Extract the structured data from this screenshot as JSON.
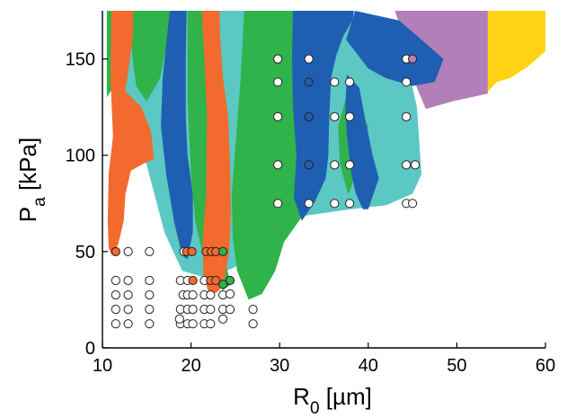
{
  "chart_data": {
    "type": "scatter",
    "title": "",
    "xlabel": "R",
    "xlabel_sub": "0",
    "xlabel_unit": " [µm]",
    "ylabel": "P",
    "ylabel_sub": "a",
    "ylabel_unit": " [kPa]",
    "xlim": [
      10,
      60
    ],
    "ylim": [
      0,
      175
    ],
    "xticks": [
      10,
      20,
      30,
      40,
      50,
      60
    ],
    "yticks": [
      0,
      50,
      100,
      150
    ],
    "grid": false,
    "colors": {
      "orange": "#f26a2e",
      "green": "#2fb34a",
      "blue": "#1f5fb2",
      "cyan": "#5cc8c3",
      "purple": "#b27fb8",
      "yellow": "#ffd314",
      "white": "#ffffff",
      "edge": "#222222"
    },
    "regions": [
      {
        "color": "cyan",
        "points": [
          [
            10.6,
            175
          ],
          [
            36,
            175
          ],
          [
            39.5,
            164
          ],
          [
            44,
            155
          ],
          [
            45.5,
            125
          ],
          [
            46,
            90
          ],
          [
            45,
            80
          ],
          [
            42,
            74
          ],
          [
            38,
            72
          ],
          [
            32,
            68
          ],
          [
            27,
            55
          ],
          [
            25,
            42
          ],
          [
            22,
            36
          ],
          [
            19,
            40
          ],
          [
            17,
            60
          ],
          [
            15,
            95
          ],
          [
            13,
            120
          ],
          [
            11,
            155
          ]
        ]
      },
      {
        "color": "purple",
        "points": [
          [
            43,
            175
          ],
          [
            53.5,
            175
          ],
          [
            53.5,
            132
          ],
          [
            49.5,
            128
          ],
          [
            46.5,
            124
          ],
          [
            45.5,
            135
          ],
          [
            44.5,
            155
          ]
        ]
      },
      {
        "color": "yellow",
        "points": [
          [
            53.5,
            175
          ],
          [
            60,
            175
          ],
          [
            60,
            154
          ],
          [
            58,
            146
          ],
          [
            56,
            140
          ],
          [
            54.5,
            138
          ],
          [
            53.5,
            133
          ]
        ]
      },
      {
        "color": "blue",
        "points": [
          [
            38.5,
            175
          ],
          [
            43.5,
            170
          ],
          [
            46.5,
            158
          ],
          [
            48.5,
            150
          ],
          [
            47.5,
            138
          ],
          [
            45,
            136
          ],
          [
            42,
            140
          ],
          [
            40,
            145
          ],
          [
            37.5,
            160
          ]
        ]
      },
      {
        "color": "green",
        "points": [
          [
            10.5,
            175
          ],
          [
            12.6,
            175
          ],
          [
            12.4,
            160
          ],
          [
            11.8,
            140
          ],
          [
            10.5,
            130
          ]
        ]
      },
      {
        "color": "green",
        "points": [
          [
            13.5,
            175
          ],
          [
            17.6,
            175
          ],
          [
            17.3,
            158
          ],
          [
            16.5,
            140
          ],
          [
            15,
            128
          ],
          [
            13.8,
            136
          ],
          [
            13.3,
            155
          ]
        ]
      },
      {
        "color": "green",
        "points": [
          [
            19.6,
            175
          ],
          [
            22.6,
            175
          ],
          [
            22.2,
            150
          ],
          [
            22.1,
            120
          ],
          [
            22.4,
            100
          ],
          [
            22.6,
            70
          ],
          [
            23.2,
            52
          ],
          [
            24,
            42
          ],
          [
            24.5,
            33
          ],
          [
            23.6,
            30
          ],
          [
            22.6,
            35
          ],
          [
            21.5,
            45
          ],
          [
            20.5,
            65
          ],
          [
            20,
            90
          ],
          [
            19.6,
            130
          ]
        ]
      },
      {
        "color": "green",
        "points": [
          [
            26,
            175
          ],
          [
            31.5,
            175
          ],
          [
            33,
            165
          ],
          [
            35.5,
            150
          ],
          [
            35.6,
            120
          ],
          [
            35.4,
            95
          ],
          [
            34.2,
            80
          ],
          [
            32.5,
            68
          ],
          [
            30.5,
            55
          ],
          [
            29.5,
            40
          ],
          [
            28,
            28
          ],
          [
            26.5,
            25
          ],
          [
            25.2,
            40
          ],
          [
            24.7,
            58
          ],
          [
            24.6,
            80
          ],
          [
            25.1,
            110
          ],
          [
            25.6,
            140
          ]
        ]
      },
      {
        "color": "green",
        "points": [
          [
            37.5,
            130
          ],
          [
            39.2,
            122
          ],
          [
            40,
            115
          ],
          [
            39.6,
            100
          ],
          [
            38.5,
            90
          ],
          [
            38,
            82
          ],
          [
            37.7,
            80
          ],
          [
            36.8,
            96
          ],
          [
            36.6,
            115
          ]
        ]
      },
      {
        "color": "blue",
        "points": [
          [
            17.6,
            175
          ],
          [
            19.5,
            175
          ],
          [
            19.4,
            150
          ],
          [
            19.4,
            120
          ],
          [
            19.6,
            100
          ],
          [
            20.2,
            80
          ],
          [
            20.2,
            60
          ],
          [
            19.6,
            46
          ],
          [
            19,
            48
          ],
          [
            18.1,
            65
          ],
          [
            17.2,
            90
          ],
          [
            16.6,
            115
          ],
          [
            16.8,
            140
          ]
        ]
      },
      {
        "color": "blue",
        "points": [
          [
            31.5,
            175
          ],
          [
            38.4,
            175
          ],
          [
            38.2,
            170
          ],
          [
            37.2,
            162
          ],
          [
            36.4,
            152
          ],
          [
            35.8,
            140
          ],
          [
            35.6,
            120
          ],
          [
            35.5,
            100
          ],
          [
            35.2,
            88
          ],
          [
            34,
            76
          ],
          [
            32.5,
            66
          ],
          [
            31.6,
            78
          ],
          [
            31.9,
            100
          ],
          [
            31.5,
            125
          ],
          [
            31.4,
            150
          ]
        ]
      },
      {
        "color": "blue",
        "points": [
          [
            37.6,
            142
          ],
          [
            39,
            135
          ],
          [
            39.6,
            120
          ],
          [
            40.5,
            100
          ],
          [
            41.2,
            88
          ],
          [
            40.6,
            80
          ],
          [
            40,
            72
          ],
          [
            39.4,
            72
          ],
          [
            38.6,
            80
          ],
          [
            38.1,
            90
          ],
          [
            37.6,
            110
          ],
          [
            37.4,
            125
          ]
        ]
      },
      {
        "color": "orange",
        "points": [
          [
            11,
            175
          ],
          [
            13.5,
            175
          ],
          [
            13.4,
            160
          ],
          [
            12.8,
            140
          ],
          [
            12.2,
            122
          ],
          [
            11.2,
            110
          ],
          [
            10.9,
            140
          ]
        ]
      },
      {
        "color": "orange",
        "points": [
          [
            21.2,
            175
          ],
          [
            23.2,
            175
          ],
          [
            23.3,
            160
          ],
          [
            23.6,
            140
          ],
          [
            24.2,
            120
          ],
          [
            24.4,
            95
          ],
          [
            24.5,
            70
          ],
          [
            24.3,
            50
          ],
          [
            23.8,
            36
          ],
          [
            23.2,
            30
          ],
          [
            22.6,
            28
          ],
          [
            21.9,
            30
          ],
          [
            21.4,
            38
          ],
          [
            21.3,
            55
          ],
          [
            21.7,
            80
          ],
          [
            21.8,
            120
          ],
          [
            21.5,
            150
          ]
        ]
      },
      {
        "color": "orange",
        "points": [
          [
            12.2,
            135
          ],
          [
            14.4,
            125
          ],
          [
            15.5,
            112
          ],
          [
            15.8,
            98
          ],
          [
            14.8,
            96
          ],
          [
            13.2,
            92
          ],
          [
            12.6,
            80
          ],
          [
            12.4,
            66
          ],
          [
            11.8,
            54
          ],
          [
            11.1,
            48
          ],
          [
            10.7,
            52
          ],
          [
            10.6,
            66
          ],
          [
            10.7,
            90
          ],
          [
            11.2,
            110
          ],
          [
            11.5,
            124
          ]
        ]
      }
    ],
    "series": [
      {
        "marker": "circle",
        "points": [
          {
            "x": 11.5,
            "y": 12.5,
            "c": "white"
          },
          {
            "x": 11.5,
            "y": 20,
            "c": "white"
          },
          {
            "x": 11.5,
            "y": 27.5,
            "c": "white"
          },
          {
            "x": 11.5,
            "y": 35,
            "c": "white"
          },
          {
            "x": 11.5,
            "y": 50,
            "c": "orange"
          },
          {
            "x": 12.9,
            "y": 12.5,
            "c": "white"
          },
          {
            "x": 12.9,
            "y": 20,
            "c": "white"
          },
          {
            "x": 12.9,
            "y": 27.5,
            "c": "white"
          },
          {
            "x": 12.9,
            "y": 35,
            "c": "white"
          },
          {
            "x": 12.9,
            "y": 50,
            "c": "white"
          },
          {
            "x": 15.3,
            "y": 12.5,
            "c": "white"
          },
          {
            "x": 15.3,
            "y": 20,
            "c": "white"
          },
          {
            "x": 15.3,
            "y": 27.5,
            "c": "white"
          },
          {
            "x": 15.3,
            "y": 35,
            "c": "white"
          },
          {
            "x": 15.3,
            "y": 50,
            "c": "white"
          },
          {
            "x": 18.8,
            "y": 12.5,
            "c": "white"
          },
          {
            "x": 18.7,
            "y": 15,
            "c": "white"
          },
          {
            "x": 18.8,
            "y": 20,
            "c": "white"
          },
          {
            "x": 19.1,
            "y": 27.5,
            "c": "white"
          },
          {
            "x": 18.8,
            "y": 35,
            "c": "white"
          },
          {
            "x": 19.2,
            "y": 50,
            "c": "white"
          },
          {
            "x": 19.6,
            "y": 12.5,
            "c": "white"
          },
          {
            "x": 19.6,
            "y": 20,
            "c": "white"
          },
          {
            "x": 19.6,
            "y": 27.5,
            "c": "white"
          },
          {
            "x": 19.6,
            "y": 35,
            "c": "white"
          },
          {
            "x": 19.5,
            "y": 50,
            "c": "orange"
          },
          {
            "x": 20.2,
            "y": 12.5,
            "c": "white"
          },
          {
            "x": 20.2,
            "y": 20,
            "c": "white"
          },
          {
            "x": 20.2,
            "y": 27.5,
            "c": "white"
          },
          {
            "x": 20.2,
            "y": 35,
            "c": "orange"
          },
          {
            "x": 20.1,
            "y": 50,
            "c": "orange"
          },
          {
            "x": 21.5,
            "y": 12.5,
            "c": "white"
          },
          {
            "x": 21.5,
            "y": 20,
            "c": "white"
          },
          {
            "x": 21.5,
            "y": 27.5,
            "c": "white"
          },
          {
            "x": 21.5,
            "y": 35,
            "c": "white"
          },
          {
            "x": 21.7,
            "y": 50,
            "c": "orange"
          },
          {
            "x": 22.2,
            "y": 12.5,
            "c": "white"
          },
          {
            "x": 22.2,
            "y": 20,
            "c": "white"
          },
          {
            "x": 22.2,
            "y": 27.5,
            "c": "white"
          },
          {
            "x": 22.2,
            "y": 35,
            "c": "orange"
          },
          {
            "x": 22.3,
            "y": 50,
            "c": "orange"
          },
          {
            "x": 22.8,
            "y": 35,
            "c": "orange"
          },
          {
            "x": 22.8,
            "y": 50,
            "c": "orange"
          },
          {
            "x": 23.6,
            "y": 15,
            "c": "white"
          },
          {
            "x": 23.6,
            "y": 20,
            "c": "white"
          },
          {
            "x": 23.6,
            "y": 27.5,
            "c": "white"
          },
          {
            "x": 23.6,
            "y": 33,
            "c": "green"
          },
          {
            "x": 23.6,
            "y": 50,
            "c": "green"
          },
          {
            "x": 24.4,
            "y": 20,
            "c": "white"
          },
          {
            "x": 24.4,
            "y": 28,
            "c": "white"
          },
          {
            "x": 24.4,
            "y": 35,
            "c": "green"
          },
          {
            "x": 27,
            "y": 12.5,
            "c": "white"
          },
          {
            "x": 27,
            "y": 20,
            "c": "white"
          },
          {
            "x": 29.8,
            "y": 75,
            "c": "white"
          },
          {
            "x": 29.8,
            "y": 95,
            "c": "white"
          },
          {
            "x": 29.8,
            "y": 120,
            "c": "white"
          },
          {
            "x": 29.8,
            "y": 138,
            "c": "white"
          },
          {
            "x": 29.8,
            "y": 150,
            "c": "white"
          },
          {
            "x": 33.3,
            "y": 75,
            "c": "white"
          },
          {
            "x": 33.3,
            "y": 95,
            "c": "blue"
          },
          {
            "x": 33.3,
            "y": 120,
            "c": "blue"
          },
          {
            "x": 33.3,
            "y": 138,
            "c": "blue"
          },
          {
            "x": 33.3,
            "y": 150,
            "c": "white"
          },
          {
            "x": 36.2,
            "y": 75,
            "c": "white"
          },
          {
            "x": 36.2,
            "y": 95,
            "c": "white"
          },
          {
            "x": 36.2,
            "y": 120,
            "c": "white"
          },
          {
            "x": 36.2,
            "y": 138,
            "c": "white"
          },
          {
            "x": 37.9,
            "y": 75,
            "c": "white"
          },
          {
            "x": 37.9,
            "y": 95,
            "c": "white"
          },
          {
            "x": 37.9,
            "y": 120,
            "c": "white"
          },
          {
            "x": 37.9,
            "y": 138,
            "c": "white"
          },
          {
            "x": 44.3,
            "y": 75,
            "c": "white"
          },
          {
            "x": 44.3,
            "y": 95,
            "c": "white"
          },
          {
            "x": 44.3,
            "y": 120,
            "c": "white"
          },
          {
            "x": 44.3,
            "y": 138,
            "c": "white"
          },
          {
            "x": 44.3,
            "y": 150,
            "c": "white"
          },
          {
            "x": 45,
            "y": 75,
            "c": "white"
          },
          {
            "x": 45.3,
            "y": 95,
            "c": "white"
          },
          {
            "x": 45,
            "y": 150,
            "c": "purple"
          }
        ]
      }
    ]
  }
}
